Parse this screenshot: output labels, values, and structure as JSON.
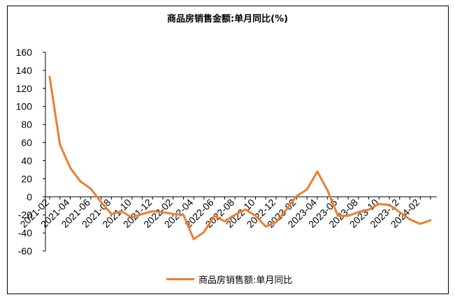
{
  "chart_data": {
    "type": "line",
    "title": "商品房销售金额:单月同比(%)",
    "ylim": [
      -60,
      160
    ],
    "y_ticks": [
      "160",
      "140",
      "120",
      "100",
      "80",
      "60",
      "40",
      "20",
      "0",
      "-20",
      "-40",
      "-60"
    ],
    "x_tick_labels": [
      "2021-02",
      "2021-04",
      "2021-06",
      "2021-08",
      "2021-10",
      "2021-12",
      "2022-02",
      "2022-04",
      "2022-06",
      "2022-08",
      "2022-10",
      "2022-12",
      "2023-02",
      "2023-04",
      "2023-06",
      "2023-08",
      "2023-10",
      "2023-12",
      "2024-02"
    ],
    "x": [
      "2021-02",
      "2021-03",
      "2021-04",
      "2021-05",
      "2021-06",
      "2021-07",
      "2021-08",
      "2021-09",
      "2021-10",
      "2021-11",
      "2021-12",
      "2022-01",
      "2022-02",
      "2022-03",
      "2022-04",
      "2022-05",
      "2022-06",
      "2022-07",
      "2022-08",
      "2022-09",
      "2022-10",
      "2022-11",
      "2022-12",
      "2023-01",
      "2023-02",
      "2023-03",
      "2023-04",
      "2023-05",
      "2023-06",
      "2023-07",
      "2023-08",
      "2023-09",
      "2023-10",
      "2023-11",
      "2023-12",
      "2024-01",
      "2024-02",
      "2024-03"
    ],
    "series": [
      {
        "name": "商品房销售额:单月同比",
        "color": "#ED7D31",
        "values": [
          133,
          58,
          32,
          17,
          9,
          -6,
          -19,
          -16,
          -23,
          -19,
          -16,
          -17,
          -19,
          -20,
          -47,
          -39,
          -21,
          -27,
          -20,
          -14,
          -21,
          -33,
          -28,
          -14,
          1,
          8,
          28,
          7,
          -21,
          -21,
          -17,
          -14,
          -8,
          -9,
          -17,
          -25,
          -30,
          -26
        ]
      }
    ]
  },
  "legend": {
    "label": "商品房销售额:单月同比"
  },
  "colors": {
    "line": "#ED7D31",
    "axis": "#000000"
  }
}
